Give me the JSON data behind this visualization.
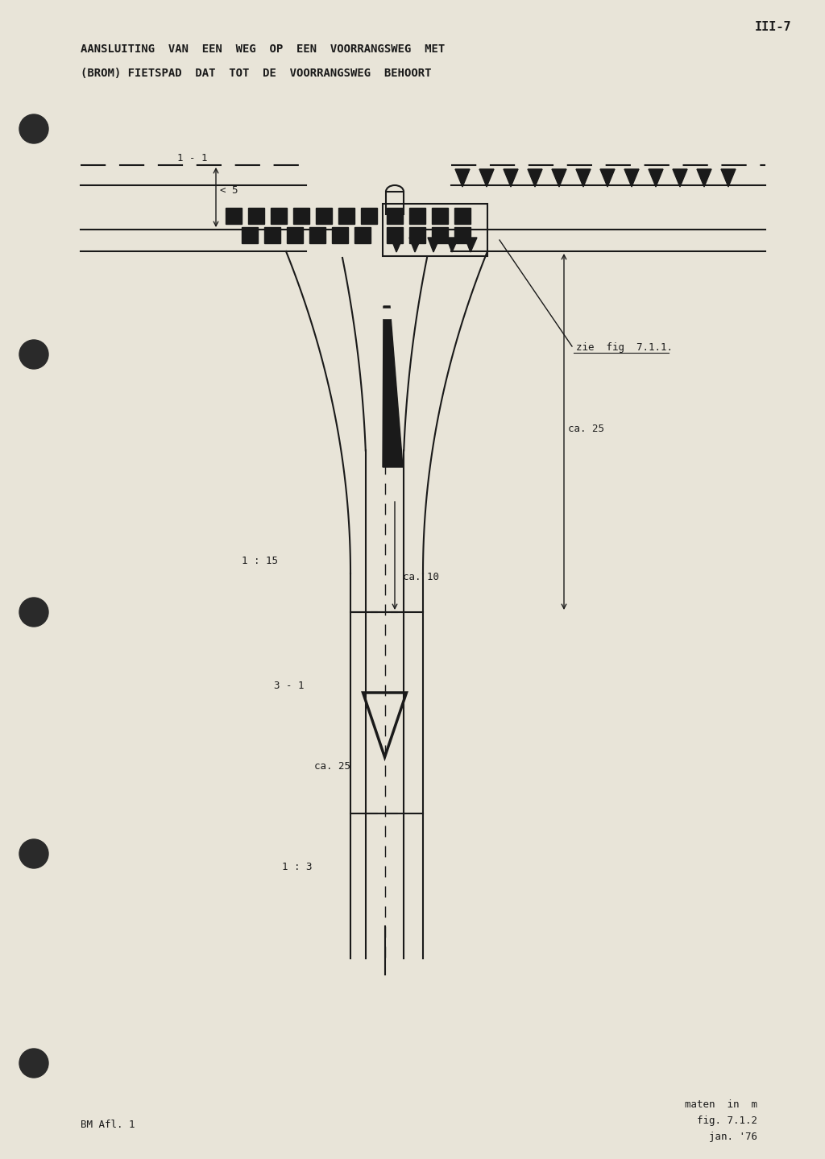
{
  "bg_color": "#e8e4d8",
  "line_color": "#1a1a1a",
  "title_line1": "AANSLUITING  VAN  EEN  WEG  OP  EEN  VOORRANGSWEG  MET",
  "title_line2": "(BROM) FIETSPAD  DAT  TOT  DE  VOORRANGSWEG  BEHOORT",
  "page_id": "III-7",
  "footer_left": "BM Afl. 1",
  "footer_right1": "maten  in  m",
  "footer_right2": "fig. 7.1.2",
  "footer_right3": "jan. '76",
  "label_11": "1 - 1",
  "label_lt5": "< 5",
  "label_115": "1 : 15",
  "label_ca25_right": "ca. 25",
  "label_ca10": "ca. 10",
  "label_31": "3 - 1",
  "label_ca25_bottom": "ca. 25",
  "label_13": "1 : 3",
  "label_zie": "zie  fig  7.1.1."
}
